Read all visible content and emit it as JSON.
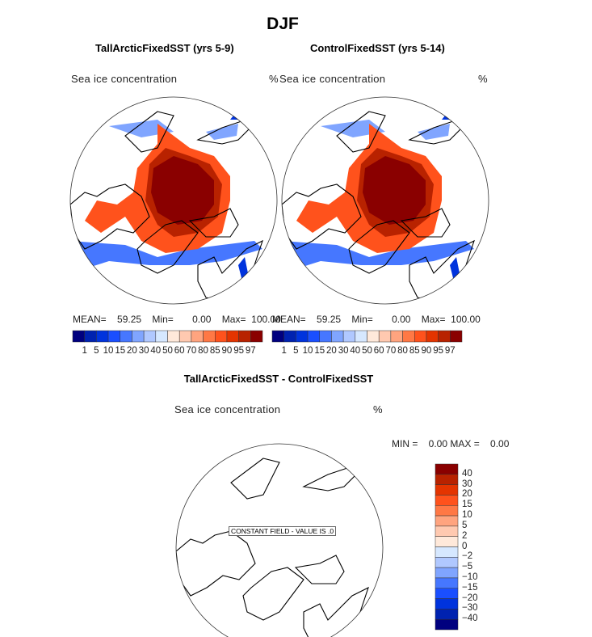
{
  "figure": {
    "title": "DJF",
    "panels": [
      {
        "title": "TallArcticFixedSST (yrs 5-9)",
        "variable": "Sea ice concentration",
        "units": "%",
        "stats": {
          "mean_label": "MEAN=",
          "mean": "59.25",
          "min_label": "Min=",
          "min": "0.00",
          "max_label": "Max=",
          "max": "100.00"
        }
      },
      {
        "title": "ControlFixedSST (yrs 5-14)",
        "variable": "Sea ice concentration",
        "units": "%",
        "stats": {
          "mean_label": "MEAN=",
          "mean": "59.25",
          "min_label": "Min=",
          "min": "0.00",
          "max_label": "Max=",
          "max": "100.00"
        }
      }
    ],
    "difference": {
      "title": "TallArcticFixedSST - ControlFixedSST",
      "variable": "Sea ice concentration",
      "units": "%",
      "stats_text": "MIN =    0.00 MAX =    0.00",
      "constant_field_label": "CONSTANT FIELD - VALUE IS .0"
    },
    "colorbar_levels": [
      "1",
      "5",
      "10",
      "15",
      "20",
      "30",
      "40",
      "50",
      "60",
      "70",
      "80",
      "85",
      "90",
      "95",
      "97"
    ],
    "diff_colorbar_levels": [
      "40",
      "30",
      "20",
      "15",
      "10",
      "5",
      "2",
      "0",
      "−2",
      "−5",
      "−10",
      "−15",
      "−20",
      "−30",
      "−40"
    ],
    "colors": [
      "#00007f",
      "#0022b0",
      "#0033dd",
      "#1a4fff",
      "#4677ff",
      "#80a5ff",
      "#b0c8ff",
      "#d6e8ff",
      "#ffe9da",
      "#ffc9b0",
      "#ffa47f",
      "#ff7845",
      "#ff521c",
      "#e43400",
      "#b82200",
      "#8a0000"
    ],
    "projection": "north-polar-stereographic"
  }
}
